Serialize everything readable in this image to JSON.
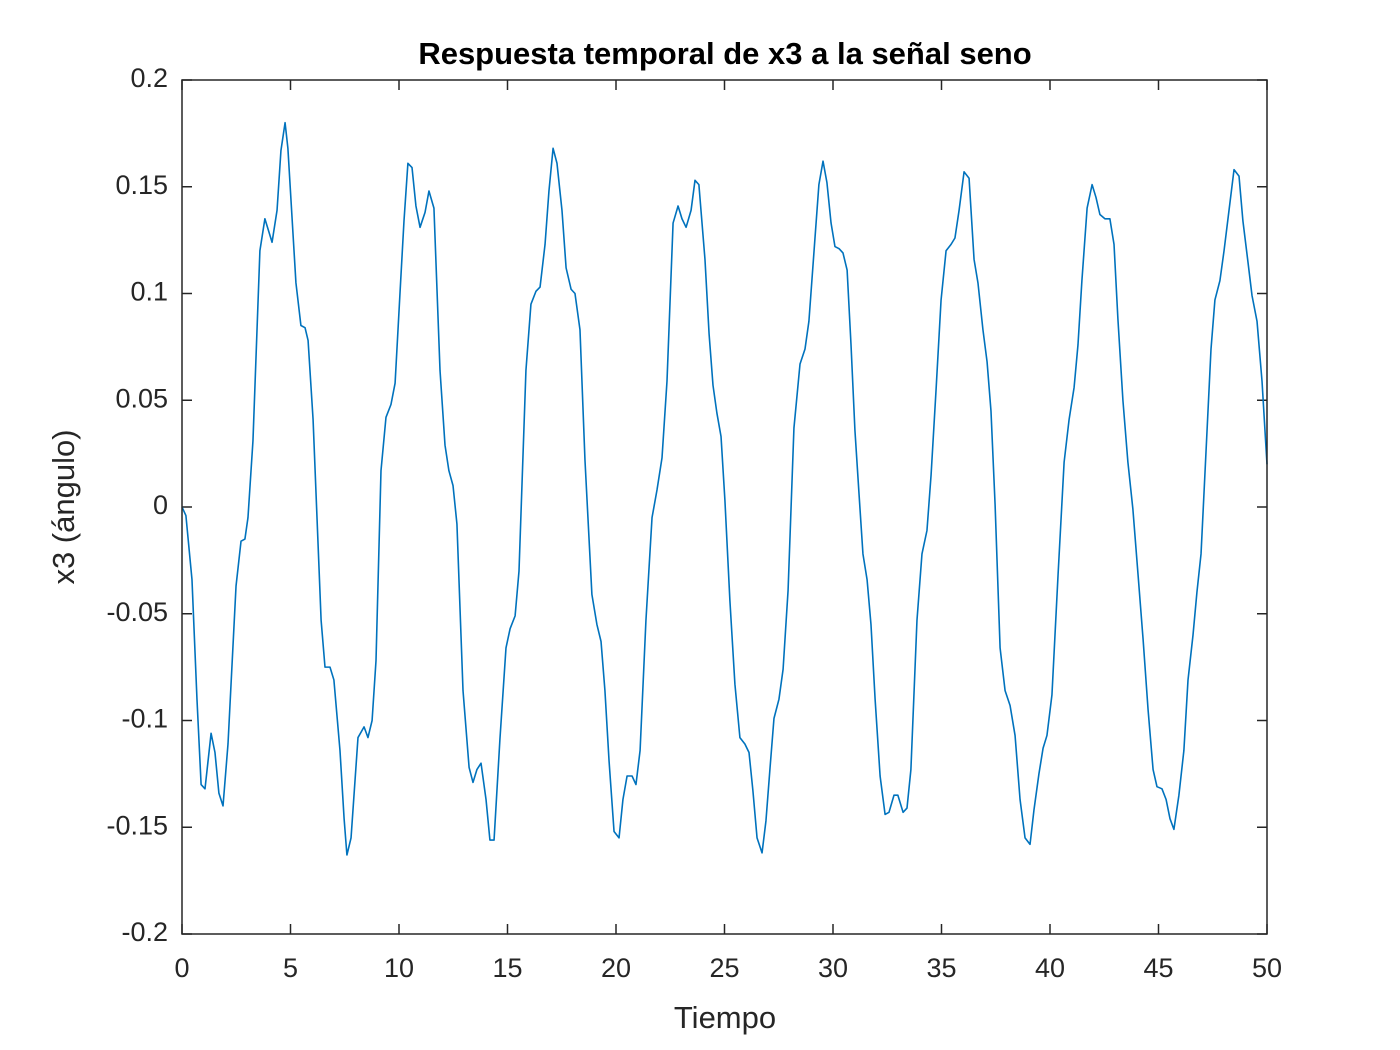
{
  "chart_data": {
    "type": "line",
    "title": "Respuesta temporal de x3 a la señal seno",
    "x_label": "Tiempo",
    "y_label": "x3 (ángulo)",
    "color": "#0072bd",
    "grid": false,
    "xlim": [
      0,
      50
    ],
    "ylim": [
      -0.2,
      0.2
    ],
    "xticks": [
      0,
      5,
      10,
      15,
      20,
      25,
      30,
      35,
      40,
      45,
      50
    ],
    "yticks": [
      -0.2,
      -0.15,
      -0.1,
      -0.05,
      0,
      0.05,
      0.1,
      0.15,
      0.2
    ],
    "x": [
      0,
      0.18,
      0.46,
      0.69,
      0.88,
      1.06,
      1.34,
      1.52,
      1.7,
      1.89,
      2.12,
      2.49,
      2.72,
      2.9,
      3.04,
      3.27,
      3.59,
      3.82,
      4.15,
      4.38,
      4.56,
      4.75,
      4.88,
      5.25,
      5.48,
      5.67,
      5.81,
      6.04,
      6.41,
      6.59,
      6.82,
      7.0,
      7.28,
      7.47,
      7.6,
      7.79,
      8.11,
      8.39,
      8.57,
      8.76,
      8.94,
      9.17,
      9.4,
      9.63,
      9.82,
      10.05,
      10.23,
      10.41,
      10.6,
      10.78,
      10.97,
      11.2,
      11.38,
      11.61,
      11.89,
      12.12,
      12.3,
      12.49,
      12.67,
      12.95,
      13.23,
      13.41,
      13.59,
      13.78,
      14.01,
      14.19,
      14.38,
      14.65,
      14.93,
      15.12,
      15.35,
      15.53,
      15.85,
      16.08,
      16.31,
      16.5,
      16.73,
      16.91,
      17.1,
      17.28,
      17.51,
      17.7,
      17.93,
      18.11,
      18.34,
      18.57,
      18.89,
      19.12,
      19.31,
      19.49,
      19.68,
      19.91,
      20.14,
      20.32,
      20.51,
      20.74,
      20.92,
      21.11,
      21.38,
      21.66,
      21.89,
      22.12,
      22.35,
      22.63,
      22.86,
      23.04,
      23.23,
      23.46,
      23.64,
      23.82,
      24.1,
      24.29,
      24.47,
      24.65,
      24.84,
      25.02,
      25.25,
      25.48,
      25.71,
      25.94,
      26.13,
      26.31,
      26.5,
      26.73,
      26.91,
      27.1,
      27.28,
      27.51,
      27.7,
      27.93,
      28.2,
      28.48,
      28.71,
      28.89,
      29.17,
      29.35,
      29.54,
      29.72,
      29.91,
      30.09,
      30.28,
      30.46,
      30.65,
      30.83,
      31.01,
      31.2,
      31.38,
      31.57,
      31.75,
      31.94,
      32.17,
      32.4,
      32.58,
      32.81,
      32.99,
      33.23,
      33.41,
      33.59,
      33.87,
      34.1,
      34.33,
      34.52,
      34.75,
      34.98,
      35.21,
      35.44,
      35.62,
      35.81,
      36.04,
      36.27,
      36.5,
      36.68,
      36.91,
      37.1,
      37.28,
      37.47,
      37.7,
      37.93,
      38.16,
      38.39,
      38.62,
      38.85,
      39.08,
      39.26,
      39.49,
      39.68,
      39.86,
      40.09,
      40.37,
      40.65,
      40.88,
      41.11,
      41.29,
      41.47,
      41.71,
      41.94,
      42.12,
      42.3,
      42.53,
      42.76,
      42.95,
      43.13,
      43.36,
      43.59,
      43.82,
      44.06,
      44.29,
      44.52,
      44.75,
      44.93,
      45.16,
      45.35,
      45.53,
      45.71,
      45.94,
      46.17,
      46.36,
      46.59,
      46.77,
      46.96,
      47.19,
      47.42,
      47.6,
      47.83,
      48.02,
      48.25,
      48.48,
      48.71,
      48.89,
      49.12,
      49.31,
      49.54,
      49.77,
      50
    ],
    "values": [
      0,
      -0.004,
      -0.034,
      -0.09,
      -0.13,
      -0.132,
      -0.106,
      -0.115,
      -0.134,
      -0.14,
      -0.111,
      -0.037,
      -0.016,
      -0.015,
      -0.005,
      0.031,
      0.12,
      0.135,
      0.124,
      0.139,
      0.167,
      0.18,
      0.168,
      0.105,
      0.085,
      0.084,
      0.078,
      0.041,
      -0.053,
      -0.075,
      -0.075,
      -0.081,
      -0.114,
      -0.146,
      -0.163,
      -0.155,
      -0.108,
      -0.103,
      -0.108,
      -0.1,
      -0.072,
      0.017,
      0.042,
      0.048,
      0.058,
      0.101,
      0.134,
      0.161,
      0.159,
      0.141,
      0.131,
      0.138,
      0.148,
      0.14,
      0.064,
      0.029,
      0.017,
      0.01,
      -0.008,
      -0.086,
      -0.122,
      -0.129,
      -0.123,
      -0.12,
      -0.137,
      -0.156,
      -0.156,
      -0.109,
      -0.066,
      -0.057,
      -0.051,
      -0.03,
      0.064,
      0.095,
      0.101,
      0.103,
      0.123,
      0.148,
      0.168,
      0.161,
      0.139,
      0.112,
      0.102,
      0.1,
      0.083,
      0.022,
      -0.041,
      -0.055,
      -0.063,
      -0.086,
      -0.119,
      -0.152,
      -0.155,
      -0.137,
      -0.126,
      -0.126,
      -0.13,
      -0.114,
      -0.053,
      -0.005,
      0.008,
      0.023,
      0.059,
      0.133,
      0.141,
      0.135,
      0.131,
      0.139,
      0.153,
      0.151,
      0.116,
      0.081,
      0.057,
      0.044,
      0.033,
      0.003,
      -0.044,
      -0.083,
      -0.108,
      -0.111,
      -0.115,
      -0.133,
      -0.155,
      -0.162,
      -0.147,
      -0.122,
      -0.099,
      -0.09,
      -0.076,
      -0.039,
      0.037,
      0.067,
      0.074,
      0.087,
      0.126,
      0.151,
      0.162,
      0.152,
      0.133,
      0.122,
      0.121,
      0.119,
      0.111,
      0.076,
      0.036,
      0.006,
      -0.022,
      -0.034,
      -0.055,
      -0.09,
      -0.126,
      -0.144,
      -0.143,
      -0.135,
      -0.135,
      -0.143,
      -0.141,
      -0.123,
      -0.053,
      -0.022,
      -0.011,
      0.015,
      0.055,
      0.097,
      0.12,
      0.123,
      0.126,
      0.139,
      0.157,
      0.154,
      0.116,
      0.105,
      0.083,
      0.068,
      0.045,
      0.001,
      -0.066,
      -0.086,
      -0.093,
      -0.107,
      -0.137,
      -0.155,
      -0.158,
      -0.142,
      -0.125,
      -0.113,
      -0.107,
      -0.088,
      -0.032,
      0.021,
      0.041,
      0.056,
      0.076,
      0.106,
      0.14,
      0.151,
      0.145,
      0.137,
      0.135,
      0.135,
      0.123,
      0.088,
      0.05,
      0.021,
      -0.001,
      -0.032,
      -0.062,
      -0.095,
      -0.123,
      -0.131,
      -0.132,
      -0.137,
      -0.146,
      -0.151,
      -0.135,
      -0.114,
      -0.081,
      -0.06,
      -0.04,
      -0.022,
      0.026,
      0.074,
      0.097,
      0.106,
      0.12,
      0.139,
      0.158,
      0.155,
      0.134,
      0.115,
      0.099,
      0.087,
      0.059,
      0.02
    ]
  }
}
